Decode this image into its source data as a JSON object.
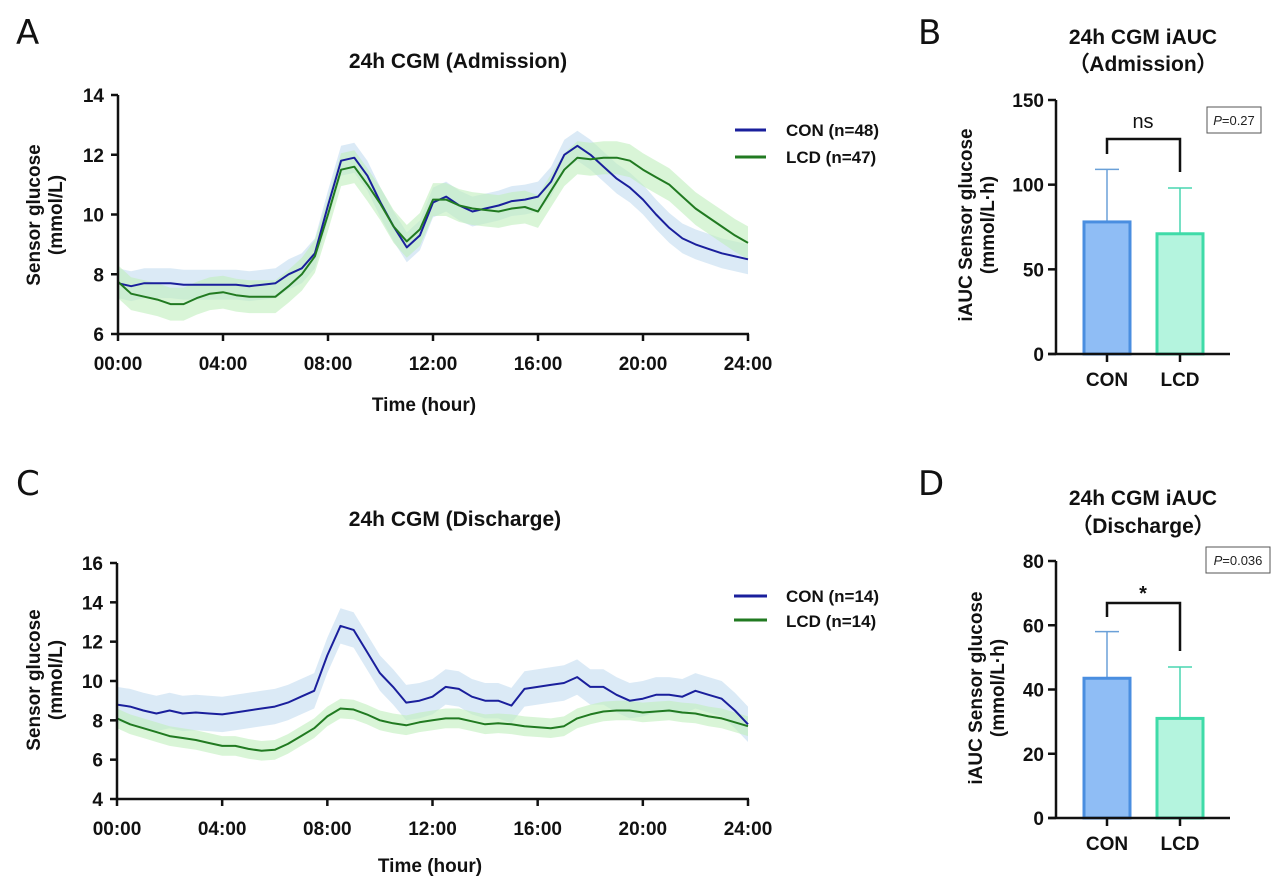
{
  "panels": {
    "A": "A",
    "B": "B",
    "C": "C",
    "D": "D"
  },
  "colors": {
    "con_line": "#1a1f9c",
    "con_band": "#cfe3f3",
    "lcd_line": "#217a21",
    "lcd_band": "#bfeebd",
    "con_bar_fill": "#8fbdf5",
    "con_bar_edge": "#4a8ee0",
    "lcd_bar_fill": "#b4f4de",
    "lcd_bar_edge": "#3fdba8",
    "con_err": "#6aa0d8",
    "lcd_err": "#48d6b0"
  },
  "chart_data": [
    {
      "id": "A",
      "type": "line",
      "title": "24h CGM (Admission)",
      "xlabel": "Time (hour)",
      "ylabel": "Sensor glucose (mmol/L)",
      "ylabel_lines": [
        "Sensor glucose",
        "(mmol/L)"
      ],
      "xlim": [
        0,
        24
      ],
      "ylim": [
        6,
        14
      ],
      "xticks": [
        0,
        4,
        8,
        12,
        16,
        20,
        24
      ],
      "xtick_labels": [
        "00:00",
        "04:00",
        "08:00",
        "12:00",
        "16:00",
        "20:00",
        "24:00"
      ],
      "yticks": [
        6,
        8,
        10,
        12,
        14
      ],
      "ytick_labels": [
        "6",
        "8",
        "10",
        "12",
        "14"
      ],
      "legend_position": "top-right",
      "grid": false,
      "x": [
        0,
        0.5,
        1,
        1.5,
        2,
        2.5,
        3,
        3.5,
        4,
        4.5,
        5,
        5.5,
        6,
        6.5,
        7,
        7.5,
        8,
        8.5,
        9,
        9.5,
        10,
        10.5,
        11,
        11.5,
        12,
        12.5,
        13,
        13.5,
        14,
        14.5,
        15,
        15.5,
        16,
        16.5,
        17,
        17.5,
        18,
        18.5,
        19,
        19.5,
        20,
        20.5,
        21,
        21.5,
        22,
        22.5,
        23,
        23.5,
        24
      ],
      "series": [
        {
          "name": "CON (n=48)",
          "values": [
            7.7,
            7.6,
            7.7,
            7.7,
            7.7,
            7.65,
            7.65,
            7.65,
            7.65,
            7.65,
            7.6,
            7.65,
            7.7,
            8.0,
            8.2,
            8.7,
            10.3,
            11.8,
            11.9,
            11.3,
            10.4,
            9.6,
            8.9,
            9.3,
            10.4,
            10.6,
            10.3,
            10.1,
            10.2,
            10.3,
            10.45,
            10.5,
            10.6,
            11.1,
            12.0,
            12.3,
            12.0,
            11.6,
            11.2,
            10.9,
            10.5,
            10.0,
            9.55,
            9.2,
            9.0,
            8.85,
            8.7,
            8.6,
            8.5
          ],
          "band": 0.5
        },
        {
          "name": "LCD (n=47)",
          "values": [
            7.75,
            7.35,
            7.25,
            7.15,
            7.0,
            7.0,
            7.2,
            7.35,
            7.4,
            7.3,
            7.25,
            7.25,
            7.25,
            7.6,
            8.0,
            8.6,
            10.0,
            11.5,
            11.6,
            11.0,
            10.35,
            9.6,
            9.1,
            9.5,
            10.5,
            10.5,
            10.3,
            10.2,
            10.15,
            10.1,
            10.2,
            10.25,
            10.1,
            10.8,
            11.5,
            11.9,
            11.85,
            11.9,
            11.9,
            11.8,
            11.5,
            11.25,
            11.0,
            10.6,
            10.2,
            9.9,
            9.6,
            9.3,
            9.05
          ],
          "band": 0.55
        }
      ]
    },
    {
      "id": "B",
      "type": "bar",
      "title": "24h CGM iAUC",
      "subtitle": "（Admission）",
      "ylabel": "iAUC Sensor glucose (mmol/L·h)",
      "ylabel_lines": [
        "iAUC Sensor glucose",
        "(mmol/L·h)"
      ],
      "categories": [
        "CON",
        "LCD"
      ],
      "values": [
        78,
        71
      ],
      "error_upper": [
        109,
        98
      ],
      "ylim": [
        0,
        150
      ],
      "yticks": [
        0,
        50,
        100,
        150
      ],
      "ytick_labels": [
        "0",
        "50",
        "100",
        "150"
      ],
      "significance": "ns",
      "p_value": "=0.27",
      "p_label": "P"
    },
    {
      "id": "C",
      "type": "line",
      "title": "24h CGM (Discharge)",
      "xlabel": "Time (hour)",
      "ylabel": "Sensor glucose (mmol/L)",
      "ylabel_lines": [
        "Sensor glucose",
        "(mmol/L)"
      ],
      "xlim": [
        0,
        24
      ],
      "ylim": [
        4,
        16
      ],
      "xticks": [
        0,
        4,
        8,
        12,
        16,
        20,
        24
      ],
      "xtick_labels": [
        "00:00",
        "04:00",
        "08:00",
        "12:00",
        "16:00",
        "20:00",
        "24:00"
      ],
      "yticks": [
        4,
        6,
        8,
        10,
        12,
        14,
        16
      ],
      "ytick_labels": [
        "4",
        "6",
        "8",
        "10",
        "12",
        "14",
        "16"
      ],
      "legend_position": "top-right",
      "grid": false,
      "x": [
        0,
        0.5,
        1,
        1.5,
        2,
        2.5,
        3,
        3.5,
        4,
        4.5,
        5,
        5.5,
        6,
        6.5,
        7,
        7.5,
        8,
        8.5,
        9,
        9.5,
        10,
        10.5,
        11,
        11.5,
        12,
        12.5,
        13,
        13.5,
        14,
        14.5,
        15,
        15.5,
        16,
        16.5,
        17,
        17.5,
        18,
        18.5,
        19,
        19.5,
        20,
        20.5,
        21,
        21.5,
        22,
        22.5,
        23,
        23.5,
        24
      ],
      "series": [
        {
          "name": "CON (n=14)",
          "values": [
            8.8,
            8.7,
            8.5,
            8.35,
            8.5,
            8.35,
            8.4,
            8.35,
            8.3,
            8.4,
            8.5,
            8.6,
            8.7,
            8.9,
            9.2,
            9.5,
            11.3,
            12.8,
            12.6,
            11.5,
            10.4,
            9.7,
            8.9,
            9.0,
            9.2,
            9.7,
            9.6,
            9.2,
            9.0,
            9.0,
            8.75,
            9.6,
            9.7,
            9.8,
            9.9,
            10.2,
            9.7,
            9.7,
            9.3,
            9.0,
            9.1,
            9.3,
            9.3,
            9.2,
            9.5,
            9.3,
            9.1,
            8.5,
            7.8
          ],
          "band": 0.9
        },
        {
          "name": "LCD (n=14)",
          "values": [
            8.1,
            7.8,
            7.6,
            7.4,
            7.2,
            7.1,
            7.0,
            6.85,
            6.7,
            6.7,
            6.55,
            6.45,
            6.5,
            6.8,
            7.2,
            7.6,
            8.2,
            8.6,
            8.55,
            8.3,
            8.0,
            7.85,
            7.75,
            7.9,
            8.0,
            8.1,
            8.1,
            7.95,
            7.8,
            7.85,
            7.8,
            7.7,
            7.65,
            7.6,
            7.7,
            8.1,
            8.3,
            8.45,
            8.5,
            8.5,
            8.4,
            8.45,
            8.5,
            8.4,
            8.35,
            8.2,
            8.1,
            7.9,
            7.7
          ],
          "band": 0.5
        }
      ]
    },
    {
      "id": "D",
      "type": "bar",
      "title": "24h CGM iAUC",
      "subtitle": "（Discharge）",
      "ylabel": "iAUC Sensor glucose (mmol/L·h)",
      "ylabel_lines": [
        "iAUC Sensor glucose",
        "(mmol/L·h)"
      ],
      "categories": [
        "CON",
        "LCD"
      ],
      "values": [
        43.5,
        31
      ],
      "error_upper": [
        58,
        47
      ],
      "ylim": [
        0,
        80
      ],
      "yticks": [
        0,
        20,
        40,
        60,
        80
      ],
      "ytick_labels": [
        "0",
        "20",
        "40",
        "60",
        "80"
      ],
      "significance": "*",
      "p_value": "=0.036",
      "p_label": "P"
    }
  ]
}
